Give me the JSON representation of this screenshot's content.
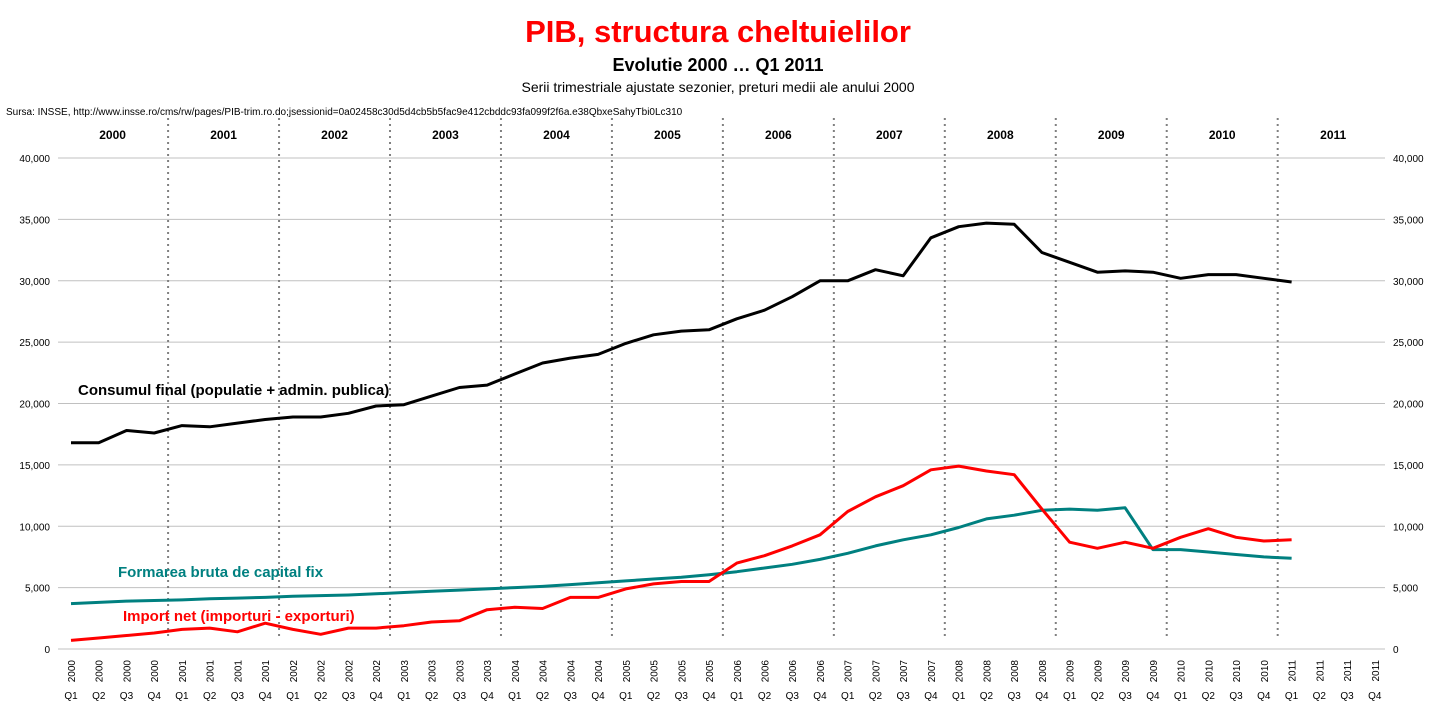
{
  "chart_data": {
    "type": "line",
    "title": "PIB, structura cheltuielilor",
    "subtitle": "Evolutie 2000 … Q1 2011",
    "subsubtitle": "Serii trimestriale ajustate sezonier, preturi medii ale anului 2000",
    "source": "Sursa: INSSE, http://www.insse.ro/cms/rw/pages/PIB-trim.ro.do;jsessionid=0a02458c30d5d4cb5b5fac9e412cbddc93fa099f2f6a.e38QbxeSahyTbi0Lc310",
    "years": [
      "2000",
      "2001",
      "2002",
      "2003",
      "2004",
      "2005",
      "2006",
      "2007",
      "2008",
      "2009",
      "2010",
      "2011"
    ],
    "quarters": [
      "Q1",
      "Q2",
      "Q3",
      "Q4"
    ],
    "ylim": [
      0,
      40000
    ],
    "yticks": [
      "0",
      "5,000",
      "10,000",
      "15,000",
      "20,000",
      "25,000",
      "30,000",
      "35,000",
      "40,000"
    ],
    "grid": true,
    "series": [
      {
        "name": "Consumul final (populatie + admin. publica)",
        "color": "#000000",
        "values": [
          16800,
          16800,
          17800,
          17600,
          18200,
          18100,
          18400,
          18700,
          18900,
          18900,
          19200,
          19800,
          19900,
          20600,
          21300,
          21500,
          22400,
          23300,
          23700,
          24000,
          24900,
          25600,
          25900,
          26000,
          26900,
          27600,
          28700,
          30000,
          30000,
          30900,
          30400,
          33500,
          34400,
          34700,
          34600,
          32300,
          31500,
          30700,
          30800,
          30700,
          30200,
          30500,
          30500,
          30200,
          29900
        ]
      },
      {
        "name": "Formarea bruta de capital fix",
        "color": "#008080",
        "values": [
          3700,
          3800,
          3900,
          3950,
          4000,
          4100,
          4150,
          4200,
          4300,
          4350,
          4400,
          4500,
          4600,
          4700,
          4800,
          4900,
          5000,
          5100,
          5250,
          5400,
          5550,
          5700,
          5850,
          6050,
          6300,
          6600,
          6900,
          7300,
          7800,
          8400,
          8900,
          9300,
          9900,
          10600,
          10900,
          11300,
          11400,
          11300,
          11500,
          8100,
          8100,
          7900,
          7700,
          7500,
          7400
        ]
      },
      {
        "name": "Import net (importuri - exporturi)",
        "color": "#ff0000",
        "values": [
          700,
          900,
          1100,
          1300,
          1600,
          1700,
          1400,
          2100,
          1600,
          1200,
          1700,
          1700,
          1900,
          2200,
          2300,
          3200,
          3400,
          3300,
          4200,
          4200,
          4900,
          5300,
          5500,
          5500,
          7000,
          7600,
          8400,
          9300,
          11200,
          12400,
          13300,
          14600,
          14900,
          14500,
          14200,
          11400,
          8700,
          8200,
          8700,
          8200,
          9100,
          9800,
          9100,
          8800,
          8900
        ]
      }
    ]
  }
}
